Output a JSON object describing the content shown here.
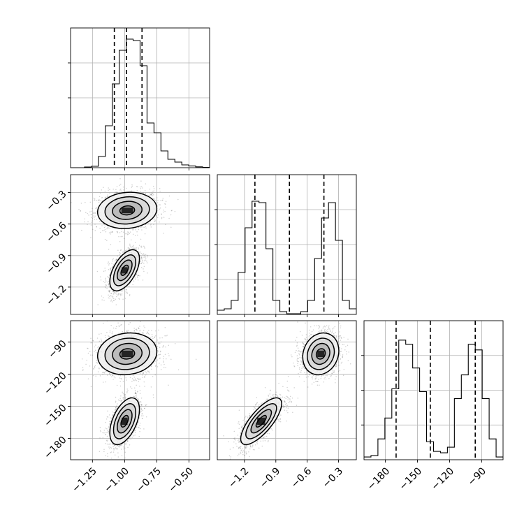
{
  "chart_data": {
    "type": "corner",
    "parameters": [
      {
        "range": [
          -1.42,
          -0.34
        ],
        "ticks": [
          -1.25,
          -1.0,
          -0.75,
          -0.5
        ],
        "tick_labels": [
          "−1.25",
          "−1.00",
          "−0.75",
          "−0.50"
        ]
      },
      {
        "range": [
          -1.46,
          -0.13
        ],
        "ticks": [
          -1.2,
          -0.9,
          -0.6,
          -0.3
        ],
        "tick_labels": [
          "−1.2",
          "−0.9",
          "−0.6",
          "−0.3"
        ]
      },
      {
        "range": [
          -200,
          -70
        ],
        "ticks": [
          -180,
          -150,
          -120,
          -90
        ],
        "tick_labels": [
          "−180",
          "−150",
          "−120",
          "−90"
        ]
      }
    ],
    "histograms": [
      {
        "param": 0,
        "bin_edges": [
          -1.42,
          -1.366,
          -1.312,
          -1.258,
          -1.204,
          -1.15,
          -1.096,
          -1.042,
          -0.988,
          -0.934,
          -0.88,
          -0.826,
          -0.772,
          -0.718,
          -0.664,
          -0.61,
          -0.556,
          -0.502,
          -0.448,
          -0.394,
          -0.34
        ],
        "counts": [
          0,
          0,
          0.005,
          0.01,
          0.08,
          0.3,
          0.6,
          0.84,
          0.92,
          0.91,
          0.73,
          0.32,
          0.25,
          0.12,
          0.06,
          0.04,
          0.02,
          0.012,
          0.006,
          0.002
        ],
        "quantiles": [
          -1.08,
          -0.985,
          -0.865
        ]
      },
      {
        "param": 1,
        "bin_edges": [
          -1.46,
          -1.3935,
          -1.327,
          -1.2605,
          -1.194,
          -1.1275,
          -1.061,
          -0.9945,
          -0.928,
          -0.8615,
          -0.795,
          -0.7285,
          -0.662,
          -0.5955,
          -0.529,
          -0.4625,
          -0.396,
          -0.3295,
          -0.263,
          -0.1965,
          -0.13
        ],
        "counts": [
          0.03,
          0.04,
          0.1,
          0.3,
          0.62,
          0.81,
          0.8,
          0.47,
          0.1,
          0.02,
          0.005,
          0.005,
          0.02,
          0.1,
          0.4,
          0.69,
          0.8,
          0.53,
          0.1,
          0.04
        ],
        "quantiles": [
          -1.1,
          -0.77,
          -0.44
        ]
      },
      {
        "param": 2,
        "bin_edges": [
          -200,
          -193.5,
          -187,
          -180.5,
          -174,
          -167.5,
          -161,
          -154.5,
          -148,
          -141.5,
          -135,
          -128.5,
          -122,
          -115.5,
          -109,
          -102.5,
          -96,
          -89.5,
          -83,
          -76.5,
          -70
        ],
        "counts": [
          0.02,
          0.03,
          0.15,
          0.3,
          0.51,
          0.86,
          0.83,
          0.66,
          0.49,
          0.13,
          0.06,
          0.05,
          0.09,
          0.44,
          0.61,
          0.83,
          0.79,
          0.44,
          0.15,
          0.02
        ],
        "quantiles": [
          -170,
          -138,
          -96
        ]
      }
    ],
    "scatter_panels": [
      {
        "x_param": 0,
        "y_param": 1,
        "modes": [
          {
            "mean": [
              -0.98,
              -0.47
            ],
            "sd": [
              0.1,
              0.075
            ],
            "rho": 0.1,
            "weight": 0.5
          },
          {
            "mean": [
              -1.0,
              -1.04
            ],
            "sd": [
              0.05,
              0.085
            ],
            "rho": 0.55,
            "weight": 0.5
          }
        ]
      },
      {
        "x_param": 0,
        "y_param": 2,
        "modes": [
          {
            "mean": [
              -0.98,
              -101
            ],
            "sd": [
              0.1,
              8.5
            ],
            "rho": 0.1,
            "weight": 0.5
          },
          {
            "mean": [
              -1.0,
              -164
            ],
            "sd": [
              0.05,
              9.5
            ],
            "rho": 0.5,
            "weight": 0.5
          }
        ]
      },
      {
        "x_param": 1,
        "y_param": 2,
        "modes": [
          {
            "mean": [
              -0.47,
              -101
            ],
            "sd": [
              0.075,
              8.5
            ],
            "rho": 0.15,
            "weight": 0.5
          },
          {
            "mean": [
              -1.04,
              -164
            ],
            "sd": [
              0.085,
              9.5
            ],
            "rho": 0.75,
            "weight": 0.5
          }
        ]
      }
    ],
    "contour_levels_sigma": [
      0.5,
      1.0,
      1.5,
      2.0
    ],
    "quantile_lines": [
      0.16,
      0.5,
      0.84
    ],
    "grid": true,
    "colors": {
      "scatter": "#555555",
      "density": "#000000",
      "contour": "#000000",
      "grid": "#b0b0b0",
      "frame": "#000000"
    }
  }
}
